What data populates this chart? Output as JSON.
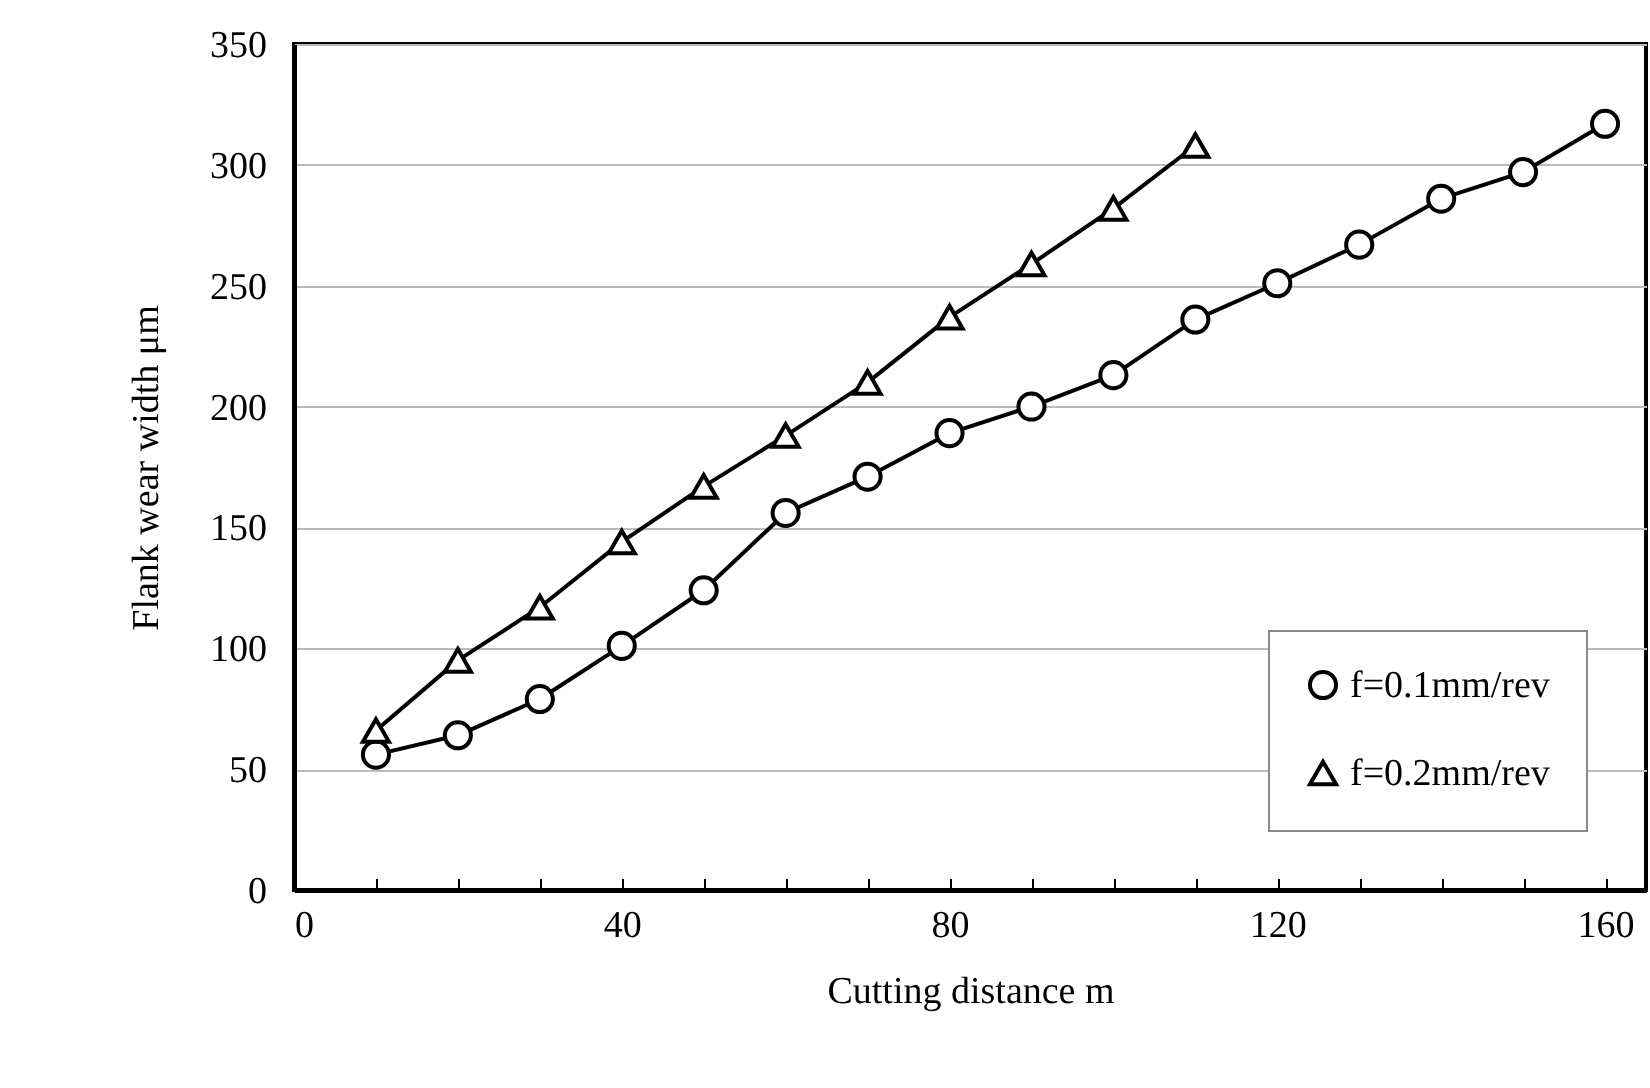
{
  "chart_data": {
    "type": "line",
    "xlabel": "Cutting distance  m",
    "ylabel": "Flank wear width  μm",
    "x": [
      10,
      20,
      30,
      40,
      50,
      60,
      70,
      80,
      90,
      100,
      110,
      120,
      130,
      140,
      150,
      160
    ],
    "series": [
      {
        "name": "f=0.1mm/rev",
        "color": "#000000",
        "marker": "circle",
        "values": [
          56,
          64,
          79,
          101,
          124,
          156,
          171,
          189,
          200,
          213,
          236,
          251,
          267,
          286,
          297,
          317
        ]
      },
      {
        "name": "f=0.2mm/rev",
        "color": "#000000",
        "marker": "triangle",
        "values": [
          66,
          95,
          117,
          144,
          167,
          188,
          210,
          237,
          259,
          282,
          308,
          null,
          null,
          null,
          null,
          null
        ]
      }
    ],
    "xlim": [
      0,
      165
    ],
    "xticks": [
      0,
      {
        "value": 10,
        "label": null
      },
      {
        "value": 20,
        "label": null
      },
      {
        "value": 30,
        "label": null
      },
      40,
      {
        "value": 50,
        "label": null
      },
      {
        "value": 60,
        "label": null
      },
      {
        "value": 70,
        "label": null
      },
      80,
      {
        "value": 90,
        "label": null
      },
      {
        "value": 100,
        "label": null
      },
      {
        "value": 110,
        "label": null
      },
      120,
      {
        "value": 130,
        "label": null
      },
      {
        "value": 140,
        "label": null
      },
      {
        "value": 150,
        "label": null
      },
      160
    ],
    "ylim": [
      0,
      350
    ],
    "yticks": [
      0,
      50,
      100,
      150,
      200,
      250,
      300,
      350
    ],
    "grid": "y",
    "legend": "bottom right",
    "line_style": "solid"
  }
}
